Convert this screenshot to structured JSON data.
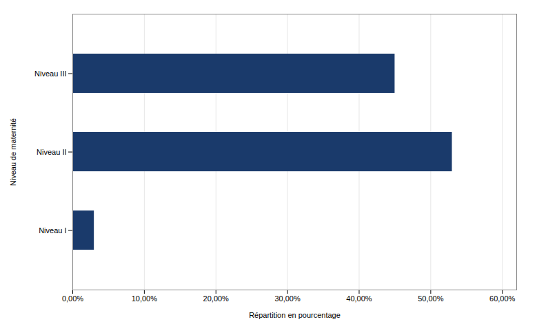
{
  "chart_data": {
    "type": "bar",
    "orientation": "horizontal",
    "categories": [
      "Niveau I",
      "Niveau II",
      "Niveau III"
    ],
    "values": [
      0.03,
      0.53,
      0.45
    ],
    "color": "#1a3a6b",
    "xlabel": "Répartition en pourcentage",
    "ylabel": "Niveau de maternité",
    "xlim": [
      0,
      0.62
    ],
    "xticks": [
      {
        "value": 0.0,
        "label": "0,00%"
      },
      {
        "value": 0.1,
        "label": "10,00%"
      },
      {
        "value": 0.2,
        "label": "20,00%"
      },
      {
        "value": 0.3,
        "label": "30,00%"
      },
      {
        "value": 0.4,
        "label": "40,00%"
      },
      {
        "value": 0.5,
        "label": "50,00%"
      },
      {
        "value": 0.6,
        "label": "60,00%"
      }
    ],
    "grid": true
  }
}
